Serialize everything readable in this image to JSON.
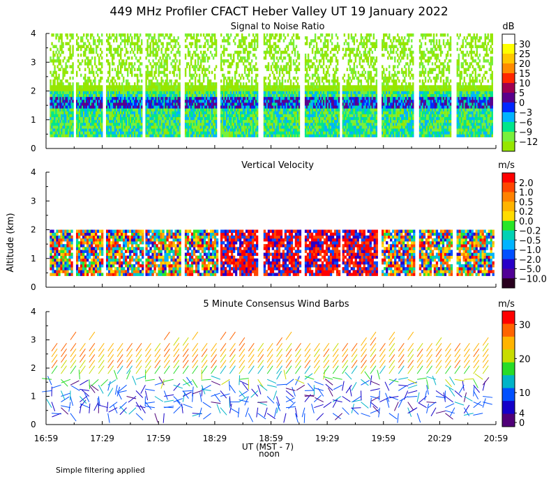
{
  "title": "449 MHz Profiler CFACT Heber Valley UT 19 January 2022",
  "shared_axes": {
    "ylabel": "Altitude (km)",
    "xlabel": "UT  (MST - 7)",
    "noon_label": "noon",
    "x_ticks": [
      "16:59",
      "17:29",
      "17:59",
      "18:29",
      "18:59",
      "19:29",
      "19:59",
      "20:29",
      "20:59"
    ],
    "y_ticks": [
      "0",
      "1",
      "2",
      "3",
      "4"
    ]
  },
  "footer_note": "Simple filtering applied",
  "chart_data": [
    {
      "type": "heatmap",
      "title": "Signal to Noise Ratio",
      "units": "dB",
      "ylim": [
        0,
        4
      ],
      "x_range": [
        "16:59",
        "20:59"
      ],
      "colorbar_labels": [
        "30",
        "25",
        "20",
        "15",
        "10",
        "5",
        "0",
        "−3",
        "−6",
        "−9",
        "−12"
      ],
      "colors": [
        "#ffffff",
        "#ffff00",
        "#ffc800",
        "#ff8c00",
        "#ff2800",
        "#a00050",
        "#5a008c",
        "#0028ff",
        "#00b4ff",
        "#00e68c",
        "#78f03c",
        "#96e600"
      ],
      "time_blocks_hhmm": [
        [
          "17:01",
          "17:13"
        ],
        [
          "17:15",
          "17:29"
        ],
        [
          "17:31",
          "17:50"
        ],
        [
          "17:52",
          "18:10"
        ],
        [
          "18:13",
          "18:30"
        ],
        [
          "18:32",
          "18:52"
        ],
        [
          "18:55",
          "19:14"
        ],
        [
          "19:17",
          "19:35"
        ],
        [
          "19:37",
          "19:55"
        ],
        [
          "19:58",
          "20:15"
        ],
        [
          "20:18",
          "20:35"
        ],
        [
          "20:38",
          "20:57"
        ]
      ],
      "structure_km": {
        "top": 2.0,
        "strong_band": [
          1.4,
          1.8
        ],
        "column_top": 4.0
      }
    },
    {
      "type": "heatmap",
      "title": "Vertical Velocity",
      "units": "m/s",
      "ylim": [
        0,
        4
      ],
      "x_range": [
        "16:59",
        "20:59"
      ],
      "colorbar_labels": [
        "2.0",
        "1.0",
        "0.5",
        "0.2",
        "0.0",
        "−0.2",
        "−0.5",
        "−1.0",
        "−2.0",
        "−5.0",
        "−10.0"
      ],
      "colors": [
        "#ff0000",
        "#ff4600",
        "#ff8200",
        "#ffb400",
        "#ffdc00",
        "#28e628",
        "#00d2b4",
        "#00b4ff",
        "#0050ff",
        "#2800c8",
        "#500096",
        "#28001e"
      ],
      "time_blocks_hhmm": [
        [
          "17:01",
          "17:13"
        ],
        [
          "17:15",
          "17:29"
        ],
        [
          "17:31",
          "17:50"
        ],
        [
          "17:52",
          "18:10"
        ],
        [
          "18:13",
          "18:30"
        ],
        [
          "18:32",
          "18:52"
        ],
        [
          "18:55",
          "19:14"
        ],
        [
          "19:17",
          "19:35"
        ],
        [
          "19:37",
          "19:55"
        ],
        [
          "19:58",
          "20:15"
        ],
        [
          "20:18",
          "20:35"
        ],
        [
          "20:38",
          "20:57"
        ]
      ],
      "structure_km": {
        "top": 2.0
      }
    },
    {
      "type": "scatter",
      "title": "5 Minute Consensus Wind Barbs",
      "units": "m/s",
      "ylim": [
        0,
        4
      ],
      "x_range": [
        "16:59",
        "20:59"
      ],
      "colorbar_labels": [
        "30",
        "20",
        "10",
        "4",
        "0"
      ],
      "colorbar_values": [
        30,
        20,
        10,
        4,
        0
      ],
      "colors": [
        "#ff0000",
        "#ff6400",
        "#ffb400",
        "#c8dc00",
        "#28dc28",
        "#00b4c8",
        "#0050ff",
        "#1400c8",
        "#500078"
      ],
      "barb_levels_km": [
        0.4,
        0.6,
        0.8,
        1.0,
        1.2,
        1.4,
        1.6,
        1.8,
        2.0,
        2.2,
        2.4,
        2.6,
        2.8,
        3.0
      ],
      "speed_profile_ms": {
        "low": 3,
        "mid": 10,
        "high": 22
      }
    }
  ]
}
